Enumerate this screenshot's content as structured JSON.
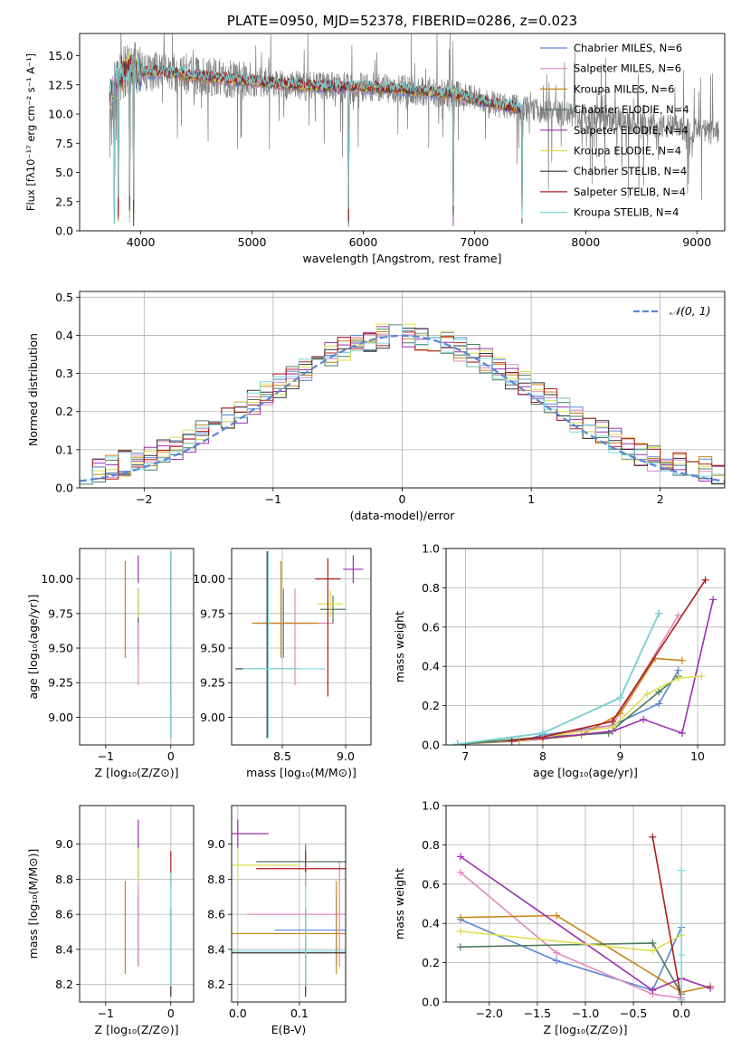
{
  "chart_data": [
    {
      "id": "spectrum",
      "type": "line",
      "title": "PLATE=0950, MJD=52378, FIBERID=0286, z=0.023",
      "xlabel": "wavelength [Angstrom, rest frame]",
      "ylabel": "Flux [fλ10⁻¹⁷ erg cm⁻² s⁻¹ A⁻¹]",
      "xlim": [
        3450,
        9250
      ],
      "ylim": [
        0,
        16.9
      ],
      "xticks": [
        4000,
        5000,
        6000,
        7000,
        8000,
        9000
      ],
      "yticks": [
        0.0,
        2.5,
        5.0,
        7.5,
        10.0,
        12.5,
        15.0
      ],
      "grid": false,
      "legend": "top-right",
      "legend_entries": [
        {
          "label": "Chabrier MILES, N_SSP=6",
          "color": "#5b87d6"
        },
        {
          "label": "Salpeter MILES, N_SSP=6",
          "color": "#e08ac0"
        },
        {
          "label": "Kroupa MILES, N_SSP=6",
          "color": "#c8861a"
        },
        {
          "label": "Chabrier ELODIE, N_SSP=4",
          "color": "#4d7a5a"
        },
        {
          "label": "Salpeter ELODIE, N_SSP=4",
          "color": "#9a30b0"
        },
        {
          "label": "Kroupa ELODIE, N_SSP=4",
          "color": "#dde050"
        },
        {
          "label": "Chabrier STELIB, N_SSP=4",
          "color": "#333333"
        },
        {
          "label": "Salpeter STELIB, N_SSP=4",
          "color": "#b01c1c"
        },
        {
          "label": "Kroupa STELIB, N_SSP=4",
          "color": "#7ad8dc"
        }
      ],
      "continuum": {
        "x": [
          3720,
          3800,
          3900,
          4000,
          4200,
          4500,
          4800,
          5000,
          5200,
          5500,
          5800,
          6000,
          6200,
          6500,
          6800,
          7000,
          7200,
          7400
        ],
        "y": [
          11.5,
          13.2,
          14.0,
          13.6,
          13.6,
          13.3,
          13.0,
          12.8,
          12.6,
          12.4,
          12.3,
          12.3,
          12.2,
          12.0,
          11.7,
          11.3,
          10.8,
          10.5
        ]
      },
      "model_dips_x": [
        3760,
        3800,
        3900,
        3935,
        5870,
        6810,
        7430
      ]
    },
    {
      "id": "residuals",
      "type": "line",
      "xlabel": "(data-model)/error",
      "ylabel": "Normed distribution",
      "xlim": [
        -2.5,
        2.5
      ],
      "ylim": [
        0,
        0.515
      ],
      "xticks": [
        -2,
        -1,
        0,
        1,
        2
      ],
      "yticks": [
        0.0,
        0.1,
        0.2,
        0.3,
        0.4,
        0.5
      ],
      "grid": true,
      "legend": "top-right",
      "legend_label": "𝒩(0, 1)",
      "gauss_color": "#5b87d6"
    },
    {
      "id": "age-vs-Z",
      "type": "scatter",
      "xlabel": "Z [log₁₀(Z/Z⊙)]",
      "ylabel": "age  [log₁₀(age/yr)]",
      "xlim": [
        -1.4,
        0.35
      ],
      "ylim": [
        8.8,
        10.22
      ],
      "xticks": [
        -1,
        0
      ],
      "yticks": [
        9.0,
        9.25,
        9.5,
        9.75,
        10.0
      ],
      "grid": true
    },
    {
      "id": "age-vs-mass",
      "type": "scatter",
      "xlabel": "mass [log₁₀(M/M⊙)]",
      "ylabel": "",
      "xlim": [
        8.1,
        9.2
      ],
      "ylim": [
        8.8,
        10.22
      ],
      "xticks": [
        8.5,
        9.0
      ],
      "yticks": [
        9.0,
        9.25,
        9.5,
        9.75,
        10.0
      ],
      "grid": true
    },
    {
      "id": "weight-vs-age",
      "type": "line",
      "xlabel": "age  [log₁₀(age/yr)]",
      "ylabel": "mass weight",
      "xlim": [
        6.75,
        10.35
      ],
      "ylim": [
        0,
        1.0
      ],
      "xticks": [
        7,
        8,
        9,
        10
      ],
      "yticks": [
        0.0,
        0.2,
        0.4,
        0.6,
        0.8,
        1.0
      ],
      "grid": true,
      "series": [
        {
          "color": "#5b87d6",
          "x": [
            6.9,
            7.7,
            8.0,
            8.9,
            9.5,
            9.75
          ],
          "y": [
            0.004,
            0.02,
            0.05,
            0.1,
            0.21,
            0.38
          ]
        },
        {
          "color": "#e08ac0",
          "x": [
            7.6,
            8.0,
            8.9,
            9.75
          ],
          "y": [
            0.02,
            0.04,
            0.1,
            0.66
          ]
        },
        {
          "color": "#c8861a",
          "x": [
            6.9,
            8.0,
            8.5,
            9.0,
            9.45,
            9.8
          ],
          "y": [
            0.004,
            0.03,
            0.05,
            0.16,
            0.44,
            0.43
          ]
        },
        {
          "color": "#4d7a5a",
          "x": [
            6.9,
            8.0,
            8.85,
            9.5,
            9.75
          ],
          "y": [
            0.004,
            0.04,
            0.06,
            0.27,
            0.35
          ]
        },
        {
          "color": "#9a30b0",
          "x": [
            7.7,
            8.9,
            9.3,
            9.8,
            10.2
          ],
          "y": [
            0.02,
            0.07,
            0.13,
            0.06,
            0.74
          ]
        },
        {
          "color": "#dde050",
          "x": [
            7.7,
            8.0,
            8.9,
            9.35,
            9.75,
            10.05
          ],
          "y": [
            0.02,
            0.04,
            0.09,
            0.26,
            0.34,
            0.35
          ]
        },
        {
          "color": "#333333",
          "x": [
            6.9,
            8.0,
            9.0,
            9.5
          ],
          "y": [
            0.004,
            0.06,
            0.24,
            0.67
          ]
        },
        {
          "color": "#b01c1c",
          "x": [
            7.6,
            8.0,
            8.9,
            10.1
          ],
          "y": [
            0.02,
            0.04,
            0.12,
            0.84
          ]
        },
        {
          "color": "#7ad8dc",
          "x": [
            6.9,
            8.0,
            9.0,
            9.5
          ],
          "y": [
            0.004,
            0.06,
            0.24,
            0.67
          ]
        }
      ]
    },
    {
      "id": "mass-vs-Z",
      "type": "scatter",
      "xlabel": "Z [log₁₀(Z/Z⊙)]",
      "ylabel": "mass [log₁₀(M/M⊙)]",
      "xlim": [
        -1.4,
        0.35
      ],
      "ylim": [
        8.1,
        9.22
      ],
      "xticks": [
        -1,
        0
      ],
      "yticks": [
        8.2,
        8.4,
        8.6,
        8.8,
        9.0
      ],
      "grid": true
    },
    {
      "id": "mass-vs-ebv",
      "type": "scatter",
      "xlabel": "E(B-V)",
      "ylabel": "",
      "xlim": [
        -0.01,
        0.175
      ],
      "ylim": [
        8.1,
        9.22
      ],
      "xticks": [
        0.0,
        0.1
      ],
      "yticks": [
        8.2,
        8.4,
        8.6,
        8.8,
        9.0
      ],
      "grid": true
    },
    {
      "id": "weight-vs-Z",
      "type": "line",
      "xlabel": "Z [log₁₀(Z/Z⊙)]",
      "ylabel": "mass weight",
      "xlim": [
        -2.45,
        0.45
      ],
      "ylim": [
        0,
        1.0
      ],
      "xticks": [
        -2.0,
        -1.5,
        -1.0,
        -0.5,
        0.0
      ],
      "yticks": [
        0.0,
        0.2,
        0.4,
        0.6,
        0.8,
        1.0
      ],
      "grid": true,
      "series": [
        {
          "color": "#5b87d6",
          "x": [
            -2.3,
            -1.3,
            -0.3,
            0.0
          ],
          "y": [
            0.42,
            0.21,
            0.06,
            0.38
          ]
        },
        {
          "color": "#e08ac0",
          "x": [
            -2.3,
            -1.3,
            -0.3,
            0.0
          ],
          "y": [
            0.66,
            0.25,
            0.04,
            0.02
          ]
        },
        {
          "color": "#c8861a",
          "x": [
            -2.3,
            -1.3,
            0.0,
            0.3
          ],
          "y": [
            0.43,
            0.44,
            0.05,
            0.08
          ]
        },
        {
          "color": "#4d7a5a",
          "x": [
            -2.3,
            -0.3,
            0.0
          ],
          "y": [
            0.28,
            0.3,
            0.04
          ]
        },
        {
          "color": "#9a30b0",
          "x": [
            -2.3,
            -0.3,
            0.0,
            0.3
          ],
          "y": [
            0.74,
            0.06,
            0.12,
            0.07
          ]
        },
        {
          "color": "#dde050",
          "x": [
            -2.3,
            -0.3,
            0.0
          ],
          "y": [
            0.36,
            0.26,
            0.34
          ]
        },
        {
          "color": "#b01c1c",
          "x": [
            -0.3,
            0.0
          ],
          "y": [
            0.84,
            0.01
          ]
        },
        {
          "color": "#7ad8dc",
          "x": [
            0.0,
            0.0,
            0.0
          ],
          "y": [
            0.67,
            0.24,
            0.01
          ]
        }
      ]
    }
  ],
  "model_points": [
    {
      "color": "#5b87d6",
      "Z": -0.5,
      "Zerr": [
        0.4,
        0.4
      ],
      "age": 9.68,
      "ageErr": [
        0.25,
        0.25
      ],
      "mass": 8.51,
      "massErr": [
        0.2,
        0.2
      ],
      "ebv": 0.16,
      "ebvErr": [
        0.1,
        0.1
      ]
    },
    {
      "color": "#e08ac0",
      "Z": -0.5,
      "Zerr": [
        0.4,
        0.4
      ],
      "age": 9.68,
      "ageErr": [
        0.45,
        0.25
      ],
      "mass": 8.6,
      "massErr": [
        0.3,
        0.3
      ],
      "ebv": 0.165,
      "ebvErr": [
        0.15,
        0.15
      ]
    },
    {
      "color": "#c8861a",
      "Z": -0.7,
      "Zerr": [
        0.7,
        0.3
      ],
      "age": 9.68,
      "ageErr": [
        0.25,
        0.45
      ],
      "mass": 8.49,
      "massErr": [
        0.23,
        0.3
      ],
      "ebv": 0.16,
      "ebvErr": [
        0.2,
        0.15
      ]
    },
    {
      "color": "#4d7a5a",
      "Z": -0.5,
      "Zerr": [
        0.4,
        0.4
      ],
      "age": 9.78,
      "ageErr": [
        0.1,
        0.1
      ],
      "mass": 8.9,
      "massErr": [
        0.1,
        0.1
      ],
      "ebv": 0.11,
      "ebvErr": [
        0.08,
        0.08
      ]
    },
    {
      "color": "#9a30b0",
      "Z": -0.5,
      "Zerr": [
        0.25,
        0.25
      ],
      "age": 10.07,
      "ageErr": [
        0.1,
        0.1
      ],
      "mass": 9.06,
      "massErr": [
        0.08,
        0.08
      ],
      "ebv": 0.0,
      "ebvErr": [
        0.05,
        0.05
      ]
    },
    {
      "color": "#dde050",
      "Z": -0.5,
      "Zerr": [
        0.25,
        0.25
      ],
      "age": 9.82,
      "ageErr": [
        0.1,
        0.1
      ],
      "mass": 8.88,
      "massErr": [
        0.1,
        0.1
      ],
      "ebv": 0.0,
      "ebvErr": [
        0.15,
        0.1
      ]
    },
    {
      "color": "#333333",
      "Z": 0.0,
      "Zerr": [
        0.25,
        0.25
      ],
      "age": 9.35,
      "ageErr": [
        0.5,
        0.85
      ],
      "mass": 8.38,
      "massErr": [
        0.25,
        0.25
      ],
      "ebv": 0.11,
      "ebvErr": [
        0.15,
        0.15
      ]
    },
    {
      "color": "#b01c1c",
      "Z": 0.0,
      "Zerr": [
        0.25,
        0.25
      ],
      "age": 10.0,
      "ageErr": [
        0.85,
        0.15
      ],
      "mass": 8.86,
      "massErr": [
        0.1,
        0.1
      ],
      "ebv": 0.11,
      "ebvErr": [
        0.08,
        0.08
      ]
    },
    {
      "color": "#7ad8dc",
      "Z": 0.0,
      "Zerr": [
        0.02,
        0.02
      ],
      "age": 9.35,
      "ageErr": [
        0.5,
        0.85
      ],
      "mass": 8.39,
      "massErr": [
        0.2,
        0.45
      ],
      "ebv": 0.11,
      "ebvErr": [
        0.12,
        0.1
      ]
    }
  ]
}
